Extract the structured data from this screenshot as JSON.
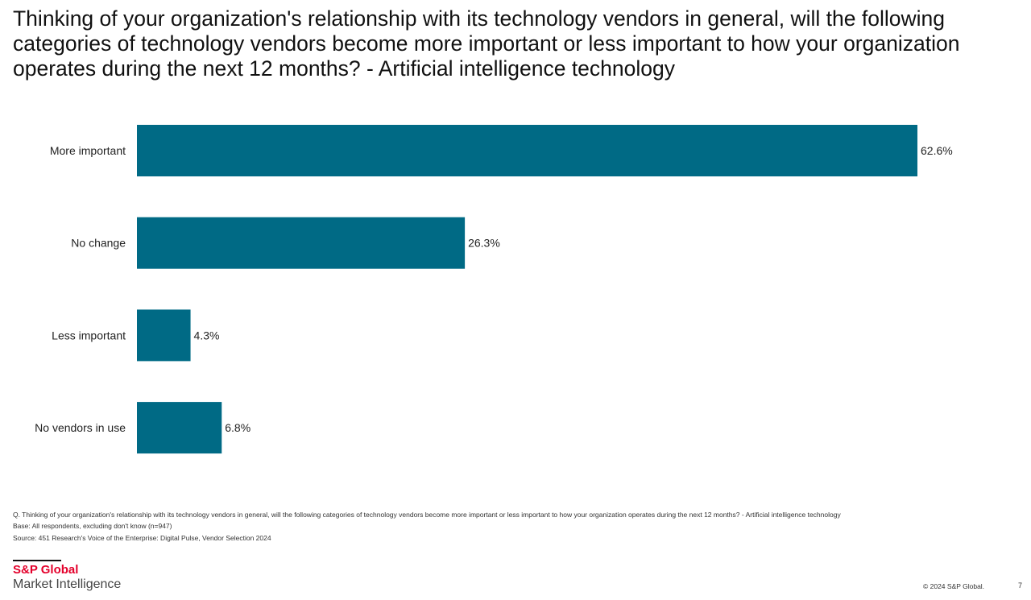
{
  "chart_data": {
    "type": "bar",
    "orientation": "horizontal",
    "title": "Thinking of your organization's relationship with its technology vendors in general, will the following categories of technology vendors become more important or less important to how your organization operates during the next 12 months? - Artificial intelligence technology",
    "categories": [
      "More important",
      "No change",
      "Less important",
      "No vendors in use"
    ],
    "values": [
      62.6,
      26.3,
      4.3,
      6.8
    ],
    "data_labels": [
      "62.6%",
      "26.3%",
      "4.3%",
      "6.8%"
    ],
    "xlim": [
      0,
      62.6
    ],
    "grid": false,
    "bar_color": "#006a85"
  },
  "footnotes": {
    "question": "Q. Thinking of your organization's relationship with its technology vendors in general, will the following categories of technology vendors become more important or less important to how your organization operates during the next 12 months? - Artificial intelligence technology",
    "base": "Base: All respondents, excluding don't know (n=947)",
    "source": "Source: 451 Research's Voice of the Enterprise: Digital Pulse, Vendor Selection 2024"
  },
  "logo": {
    "line1": "S&P Global",
    "line2": "Market Intelligence"
  },
  "copyright": "© 2024 S&P Global.",
  "page_number": "7"
}
